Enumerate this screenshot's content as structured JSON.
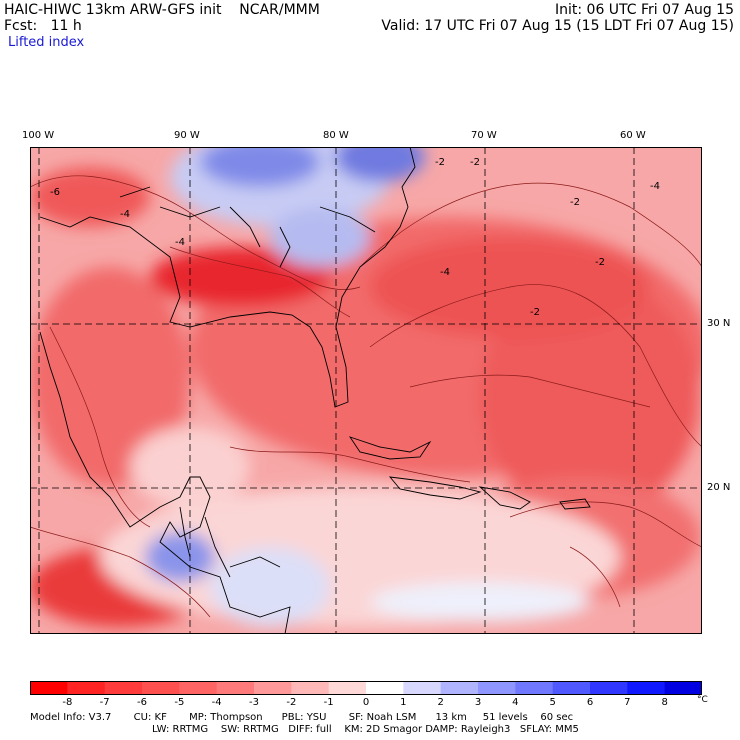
{
  "header": {
    "left_line1": "HAIC-HIWC 13km ARW-GFS init    NCAR/MMM",
    "left_line2": "Fcst:   11 h",
    "right_line1": "Init: 06 UTC Fri 07 Aug 15",
    "right_line2": "Valid: 17 UTC Fri 07 Aug 15 (15 LDT Fri 07 Aug 15)",
    "field": "Lifted index"
  },
  "map": {
    "lon_labels": [
      "100 W",
      "90 W",
      "80 W",
      "70 W",
      "60 W"
    ],
    "lon_values": [
      -100,
      -90,
      -80,
      -70,
      -60
    ],
    "lat_labels": [
      "30 N",
      "20 N"
    ],
    "lat_values": [
      30,
      20
    ],
    "contour_labels": [
      "-2",
      "-4",
      "-6"
    ],
    "colors": {
      "unstable_strong": "#e8262e",
      "unstable_moderate": "#f26a6a",
      "unstable_weak": "#f9b3b3",
      "neutral": "#fdeaea",
      "stable_weak": "#c8ccf4",
      "stable_moderate": "#7f8ae8",
      "stable_strong": "#2a30d8"
    }
  },
  "colorbar": {
    "labels": [
      "-8",
      "-7",
      "-6",
      "-5",
      "-4",
      "-3",
      "-2",
      "-1",
      "0",
      "1",
      "2",
      "3",
      "4",
      "5",
      "6",
      "7",
      "8"
    ],
    "unit": "°C",
    "colors": [
      "#ff0000",
      "#ff2323",
      "#ff3b3b",
      "#ff5050",
      "#ff6565",
      "#ff7a7a",
      "#ff9898",
      "#ffb8b8",
      "#ffd8d8",
      "#ffffff",
      "#d8d8ff",
      "#b0b4ff",
      "#9096ff",
      "#7078ff",
      "#5058ff",
      "#3038ff",
      "#1018ff",
      "#0000e0"
    ]
  },
  "model_info": {
    "line1": "Model Info: V3.7       CU: KF       MP: Thompson      PBL: YSU       SF: Noah LSM      13 km     51 levels    60 sec",
    "line2": "LW: RRTMG    SW: RRTMG   DIFF: full    KM: 2D Smagor DAMP: Rayleigh3   SFLAY: MM5"
  }
}
